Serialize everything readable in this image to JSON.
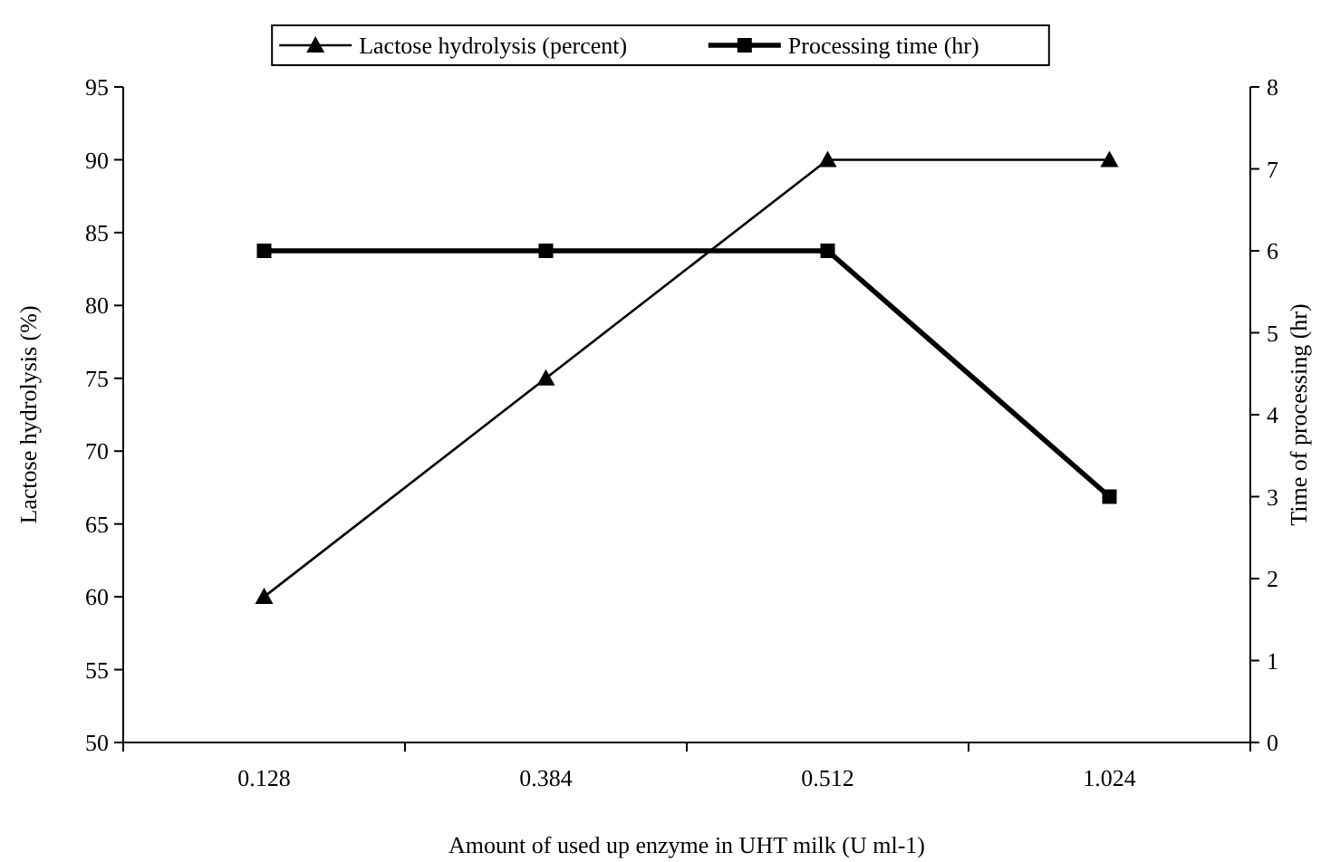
{
  "chart_data": {
    "type": "line",
    "xlabel": "Amount of used up enzyme in UHT milk (U ml-1)",
    "ylabel": "Lactose hydrolysis (%)",
    "y2label": "Time of processing (hr)",
    "categories": [
      "0.128",
      "0.384",
      "0.512",
      "1.024"
    ],
    "series": [
      {
        "name": "Lactose hydrolysis (percent)",
        "color": "#000000",
        "marker": "triangle",
        "values": [
          60,
          75,
          90,
          90
        ]
      },
      {
        "name": "Processing time (hr)",
        "color": "#000000",
        "marker": "square",
        "axis": "y2",
        "values": [
          6,
          6,
          6,
          3
        ]
      }
    ],
    "ylim": [
      50,
      95
    ],
    "yticks": [
      50,
      55,
      60,
      65,
      70,
      75,
      80,
      85,
      90,
      95
    ],
    "y2lim": [
      0,
      8
    ],
    "y2ticks": [
      0,
      1,
      2,
      3,
      4,
      5,
      6,
      7,
      8
    ],
    "grid": false,
    "legend": "top",
    "line_style": "solid"
  }
}
